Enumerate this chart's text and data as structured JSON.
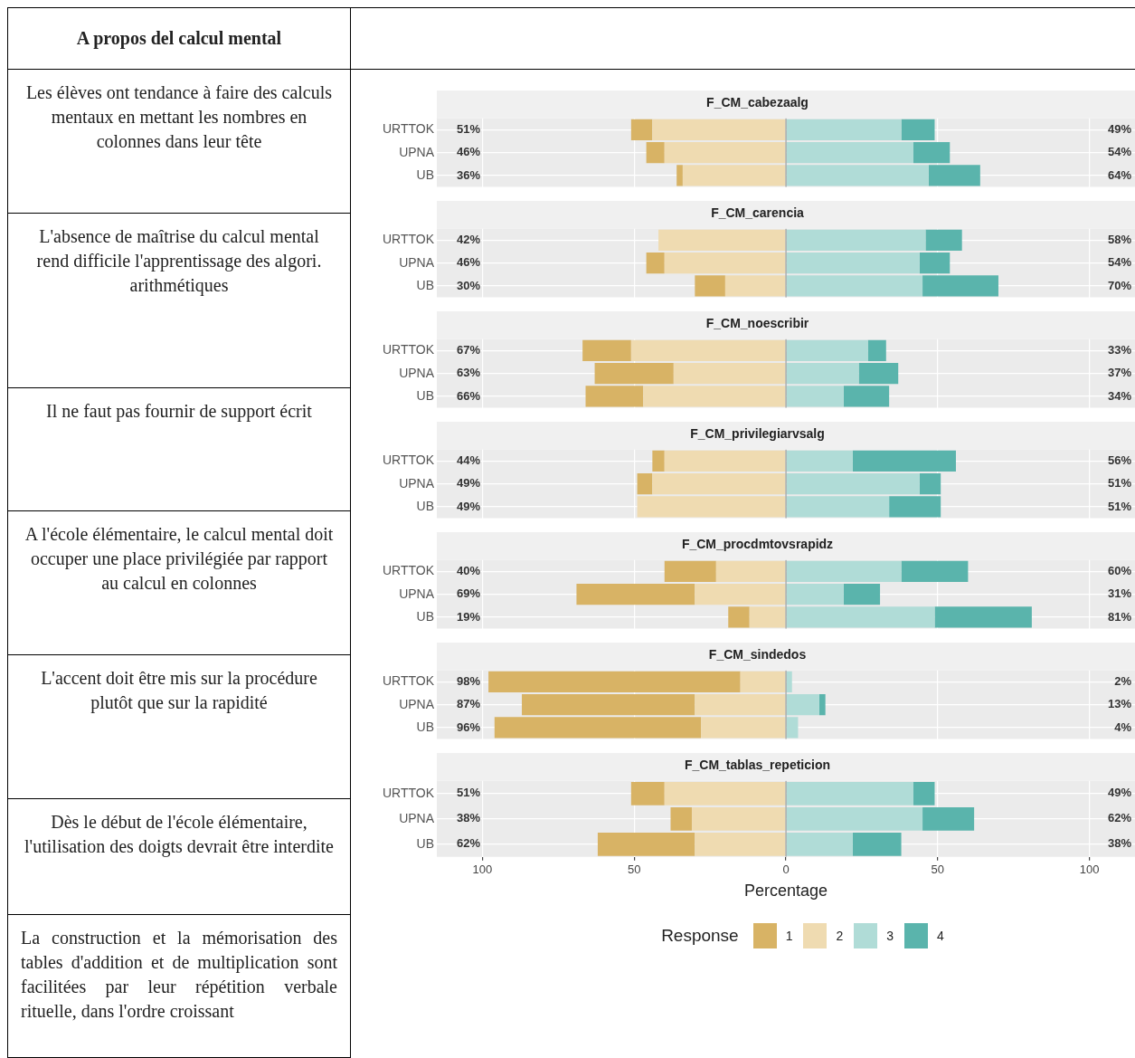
{
  "chart_data": [
    {
      "type": "other",
      "title": "A propos del calcul mental",
      "annotations": [
        "Les élèves ont tendance à faire des calculs mentaux en mettant les nombres en colonnes dans leur tête",
        "L'absence de maîtrise du calcul mental rend difficile l'apprentissage des algori. arithmétiques",
        "Il ne faut pas fournir de support écrit",
        "A l'école élémentaire, le calcul mental doit occuper une place privilégiée par rapport au calcul en colonnes",
        "L'accent doit être mis sur la procédure plutôt que sur la rapidité",
        "Dès le début de l'école élémentaire, l'utilisation des doigts devrait être interdite",
        "La construction et la mémorisation des tables d'addition et de multiplication sont facilitées par leur répétition verbale rituelle, dans l'ordre croissant"
      ]
    },
    {
      "type": "bar",
      "orientation": "horizontal",
      "stacked": true,
      "title": "F_CM_cabezaalg",
      "categories": [
        "URTTOK",
        "UPNA",
        "UB"
      ],
      "xlim": [
        -115,
        115
      ],
      "grid": true,
      "tick_labels": "y",
      "ref_lines": [
        {
          "axis": "x",
          "value": 0,
          "color": "#888888"
        }
      ],
      "annotations": [
        "51%",
        "46%",
        "36%",
        "49%",
        "54%",
        "64%"
      ],
      "series": [
        {
          "color": "#d8b365",
          "values": [
            -7,
            -6,
            -2
          ]
        },
        {
          "color": "#efdbb1",
          "values": [
            -44,
            -40,
            -34
          ]
        },
        {
          "color": "#b0dcd7",
          "values": [
            38,
            42,
            47
          ]
        },
        {
          "color": "#5ab4ac",
          "values": [
            11,
            12,
            17
          ]
        }
      ]
    },
    {
      "type": "bar",
      "orientation": "horizontal",
      "stacked": true,
      "title": "F_CM_carencia",
      "categories": [
        "URTTOK",
        "UPNA",
        "UB"
      ],
      "xlim": [
        -115,
        115
      ],
      "grid": true,
      "tick_labels": "y",
      "ref_lines": [
        {
          "axis": "x",
          "value": 0,
          "color": "#888888"
        }
      ],
      "annotations": [
        "42%",
        "46%",
        "30%",
        "58%",
        "54%",
        "70%"
      ],
      "series": [
        {
          "color": "#d8b365",
          "values": [
            0,
            -6,
            -10
          ]
        },
        {
          "color": "#efdbb1",
          "values": [
            -42,
            -40,
            -20
          ]
        },
        {
          "color": "#b0dcd7",
          "values": [
            46,
            44,
            45
          ]
        },
        {
          "color": "#5ab4ac",
          "values": [
            12,
            10,
            25
          ]
        }
      ]
    },
    {
      "type": "bar",
      "orientation": "horizontal",
      "stacked": true,
      "title": "F_CM_noescribir",
      "categories": [
        "URTTOK",
        "UPNA",
        "UB"
      ],
      "xlim": [
        -115,
        115
      ],
      "grid": true,
      "tick_labels": "y",
      "ref_lines": [
        {
          "axis": "x",
          "value": 0,
          "color": "#888888"
        }
      ],
      "annotations": [
        "67%",
        "63%",
        "66%",
        "33%",
        "37%",
        "34%"
      ],
      "series": [
        {
          "color": "#d8b365",
          "values": [
            -16,
            -26,
            -19
          ]
        },
        {
          "color": "#efdbb1",
          "values": [
            -51,
            -37,
            -47
          ]
        },
        {
          "color": "#b0dcd7",
          "values": [
            27,
            24,
            19
          ]
        },
        {
          "color": "#5ab4ac",
          "values": [
            6,
            13,
            15
          ]
        }
      ]
    },
    {
      "type": "bar",
      "orientation": "horizontal",
      "stacked": true,
      "title": "F_CM_privilegiarvsalg",
      "categories": [
        "URTTOK",
        "UPNA",
        "UB"
      ],
      "xlim": [
        -115,
        115
      ],
      "grid": true,
      "tick_labels": "y",
      "ref_lines": [
        {
          "axis": "x",
          "value": 0,
          "color": "#888888"
        }
      ],
      "annotations": [
        "44%",
        "49%",
        "49%",
        "56%",
        "51%",
        "51%"
      ],
      "series": [
        {
          "color": "#d8b365",
          "values": [
            -4,
            -5,
            0
          ]
        },
        {
          "color": "#efdbb1",
          "values": [
            -40,
            -44,
            -49
          ]
        },
        {
          "color": "#b0dcd7",
          "values": [
            22,
            44,
            34
          ]
        },
        {
          "color": "#5ab4ac",
          "values": [
            34,
            7,
            17
          ]
        }
      ]
    },
    {
      "type": "bar",
      "orientation": "horizontal",
      "stacked": true,
      "title": "F_CM_procdmtovsrapidz",
      "categories": [
        "URTTOK",
        "UPNA",
        "UB"
      ],
      "xlim": [
        -115,
        115
      ],
      "grid": true,
      "tick_labels": "y",
      "ref_lines": [
        {
          "axis": "x",
          "value": 0,
          "color": "#888888"
        }
      ],
      "annotations": [
        "40%",
        "69%",
        "19%",
        "60%",
        "31%",
        "81%"
      ],
      "series": [
        {
          "color": "#d8b365",
          "values": [
            -17,
            -39,
            -7
          ]
        },
        {
          "color": "#efdbb1",
          "values": [
            -23,
            -30,
            -12
          ]
        },
        {
          "color": "#b0dcd7",
          "values": [
            38,
            19,
            49
          ]
        },
        {
          "color": "#5ab4ac",
          "values": [
            22,
            12,
            32
          ]
        }
      ]
    },
    {
      "type": "bar",
      "orientation": "horizontal",
      "stacked": true,
      "title": "F_CM_sindedos",
      "categories": [
        "URTTOK",
        "UPNA",
        "UB"
      ],
      "xlim": [
        -115,
        115
      ],
      "grid": true,
      "tick_labels": "y",
      "ref_lines": [
        {
          "axis": "x",
          "value": 0,
          "color": "#888888"
        }
      ],
      "annotations": [
        "98%",
        "87%",
        "96%",
        "2%",
        "13%",
        "4%"
      ],
      "series": [
        {
          "color": "#d8b365",
          "values": [
            -83,
            -57,
            -68
          ]
        },
        {
          "color": "#efdbb1",
          "values": [
            -15,
            -30,
            -28
          ]
        },
        {
          "color": "#b0dcd7",
          "values": [
            2,
            11,
            4
          ]
        },
        {
          "color": "#5ab4ac",
          "values": [
            0,
            2,
            0
          ]
        }
      ]
    },
    {
      "type": "bar",
      "orientation": "horizontal",
      "stacked": true,
      "title": "F_CM_tablas_repeticion",
      "categories": [
        "URTTOK",
        "UPNA",
        "UB"
      ],
      "xlim": [
        -115,
        115
      ],
      "xticks": [
        {
          "value": -100,
          "label": "100"
        },
        {
          "value": -50,
          "label": "50"
        },
        0,
        50,
        100
      ],
      "grid": true,
      "xlabel": "Percentage",
      "legend": "bottom",
      "legend_title": "Response",
      "ref_lines": [
        {
          "axis": "x",
          "value": 0,
          "color": "#888888"
        }
      ],
      "annotations": [
        "51%",
        "38%",
        "62%",
        "49%",
        "62%",
        "38%"
      ],
      "series": [
        {
          "name": "1",
          "color": "#d8b365",
          "values": [
            -11,
            -7,
            -32
          ]
        },
        {
          "name": "2",
          "color": "#efdbb1",
          "values": [
            -40,
            -31,
            -30
          ]
        },
        {
          "name": "3",
          "color": "#b0dcd7",
          "values": [
            42,
            45,
            22
          ]
        },
        {
          "name": "4",
          "color": "#5ab4ac",
          "values": [
            7,
            17,
            16
          ]
        }
      ]
    }
  ]
}
